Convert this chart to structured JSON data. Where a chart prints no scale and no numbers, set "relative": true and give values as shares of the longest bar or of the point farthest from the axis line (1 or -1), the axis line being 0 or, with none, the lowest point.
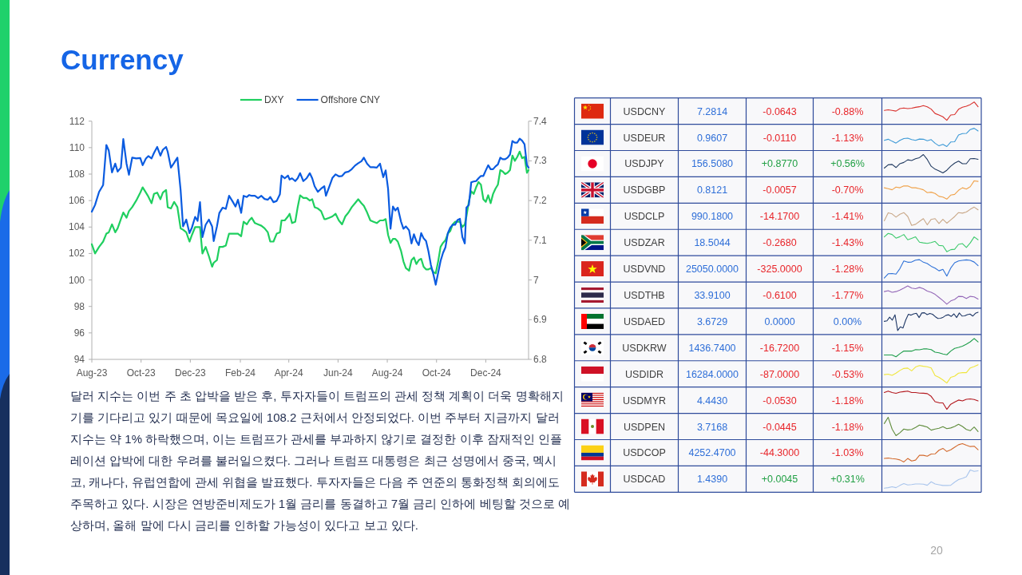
{
  "chart_data": [
    {
      "type": "line",
      "title": "Currency",
      "x": [
        "2023-08-01",
        "2023-08-05",
        "2023-08-10",
        "2023-08-15",
        "2023-08-19",
        "2023-08-22",
        "2023-08-26",
        "2023-08-30",
        "2023-09-02",
        "2023-09-06",
        "2023-09-09",
        "2023-09-13",
        "2023-09-16",
        "2023-09-20",
        "2023-09-25",
        "2023-09-30",
        "2023-10-03",
        "2023-10-07",
        "2023-10-10",
        "2023-10-14",
        "2023-10-17",
        "2023-10-21",
        "2023-10-25",
        "2023-10-28",
        "2023-11-01",
        "2023-11-03",
        "2023-11-07",
        "2023-11-11",
        "2023-11-15",
        "2023-11-19",
        "2023-11-22",
        "2023-11-26",
        "2023-11-30",
        "2023-12-03",
        "2023-12-07",
        "2023-12-10",
        "2023-12-13",
        "2023-12-16",
        "2023-12-20",
        "2023-12-24",
        "2023-12-28",
        "2023-12-30",
        "2024-01-03",
        "2024-01-06",
        "2024-01-10",
        "2024-01-14",
        "2024-01-18",
        "2024-01-22",
        "2024-01-26",
        "2024-01-29",
        "2024-02-02",
        "2024-02-05",
        "2024-02-09",
        "2024-02-12",
        "2024-02-15",
        "2024-02-19",
        "2024-02-23",
        "2024-02-27",
        "2024-03-02",
        "2024-03-06",
        "2024-03-09",
        "2024-03-13",
        "2024-03-17",
        "2024-03-21",
        "2024-03-23",
        "2024-03-27",
        "2024-03-31",
        "2024-04-02",
        "2024-04-05",
        "2024-04-09",
        "2024-04-12",
        "2024-04-15",
        "2024-04-19",
        "2024-04-23",
        "2024-04-27",
        "2024-04-30",
        "2024-05-03",
        "2024-05-07",
        "2024-05-11",
        "2024-05-15",
        "2024-05-17",
        "2024-05-21",
        "2024-05-25",
        "2024-05-29",
        "2024-06-02",
        "2024-06-06",
        "2024-06-10",
        "2024-06-14",
        "2024-06-18",
        "2024-06-22",
        "2024-06-26",
        "2024-06-30",
        "2024-07-03",
        "2024-07-07",
        "2024-07-11",
        "2024-07-15",
        "2024-07-19",
        "2024-07-23",
        "2024-07-27",
        "2024-07-30",
        "2024-08-02",
        "2024-08-05",
        "2024-08-08",
        "2024-08-11",
        "2024-08-14",
        "2024-08-18",
        "2024-08-21",
        "2024-08-24",
        "2024-08-28",
        "2024-08-31",
        "2024-09-03",
        "2024-09-06",
        "2024-09-09",
        "2024-09-12",
        "2024-09-15",
        "2024-09-18",
        "2024-09-21",
        "2024-09-24",
        "2024-09-27",
        "2024-09-30",
        "2024-10-03",
        "2024-10-06",
        "2024-10-09",
        "2024-10-12",
        "2024-10-15",
        "2024-10-18",
        "2024-10-21",
        "2024-10-24",
        "2024-10-27",
        "2024-10-30",
        "2024-11-02",
        "2024-11-05",
        "2024-11-07",
        "2024-11-10",
        "2024-11-13",
        "2024-11-16",
        "2024-11-19",
        "2024-11-22",
        "2024-11-25",
        "2024-11-28",
        "2024-12-01",
        "2024-12-04",
        "2024-12-07",
        "2024-12-10",
        "2024-12-13",
        "2024-12-16",
        "2024-12-19",
        "2024-12-22",
        "2024-12-25",
        "2024-12-28",
        "2024-12-31",
        "2025-01-03",
        "2025-01-06",
        "2025-01-09",
        "2025-01-12",
        "2025-01-15",
        "2025-01-18",
        "2025-01-21",
        "2025-01-23"
      ],
      "xlim": [
        "2023-08-01",
        "2025-01-23"
      ],
      "xticks": [
        {
          "value": "2023-08-01",
          "label": "Aug-23"
        },
        {
          "value": "2023-10-01",
          "label": "Oct-23"
        },
        {
          "value": "2023-12-01",
          "label": "Dec-23"
        },
        {
          "value": "2024-02-01",
          "label": "Feb-24"
        },
        {
          "value": "2024-04-01",
          "label": "Apr-24"
        },
        {
          "value": "2024-06-01",
          "label": "Jun-24"
        },
        {
          "value": "2024-08-01",
          "label": "Aug-24"
        },
        {
          "value": "2024-10-01",
          "label": "Oct-24"
        },
        {
          "value": "2024-12-01",
          "label": "Dec-24"
        }
      ],
      "ylim": [
        94,
        112
      ],
      "yticks": [
        94,
        96,
        98,
        100,
        102,
        104,
        106,
        108,
        110,
        112
      ],
      "y2lim": [
        6.8,
        7.4
      ],
      "y2ticks": [
        6.8,
        6.9,
        7,
        7.1,
        7.2,
        7.3,
        7.4
      ],
      "legend": "top",
      "series": [
        {
          "name": "DXY",
          "color": "#1fcf5f",
          "values": [
            102.7,
            102.0,
            102.5,
            102.9,
            103.5,
            103.6,
            104.2,
            103.6,
            103.9,
            104.6,
            105.1,
            104.7,
            105.2,
            105.5,
            106.0,
            106.6,
            107.0,
            106.6,
            106.3,
            105.8,
            106.5,
            106.6,
            106.1,
            106.6,
            106.8,
            105.5,
            105.4,
            105.9,
            105.5,
            103.9,
            103.8,
            103.6,
            102.9,
            103.4,
            104.0,
            104.0,
            104.0,
            102.0,
            102.5,
            101.8,
            101.0,
            101.3,
            101.5,
            102.5,
            102.5,
            102.6,
            103.5,
            103.5,
            103.5,
            103.5,
            103.3,
            104.4,
            104.2,
            104.5,
            104.7,
            104.3,
            104.2,
            104.1,
            103.9,
            103.6,
            102.9,
            102.9,
            103.5,
            103.6,
            104.5,
            104.5,
            104.8,
            105.0,
            104.3,
            104.4,
            105.5,
            106.4,
            106.2,
            106.2,
            106.0,
            106.1,
            105.5,
            105.4,
            105.2,
            104.6,
            104.6,
            104.7,
            104.8,
            105.0,
            104.5,
            104.2,
            104.8,
            105.1,
            105.5,
            105.8,
            106.1,
            105.8,
            105.6,
            105.1,
            104.5,
            104.4,
            104.3,
            104.5,
            104.5,
            104.6,
            103.4,
            102.8,
            103.1,
            103.1,
            102.9,
            102.2,
            101.4,
            100.9,
            100.7,
            101.5,
            101.7,
            101.2,
            101.5,
            101.6,
            101.0,
            100.8,
            100.8,
            100.9,
            100.6,
            100.5,
            101.4,
            102.5,
            102.8,
            103.0,
            103.5,
            103.7,
            104.2,
            104.4,
            104.4,
            104.4,
            104.0,
            104.2,
            104.8,
            105.9,
            106.7,
            106.5,
            107.0,
            107.4,
            107.2,
            106.1,
            105.9,
            106.4,
            105.8,
            106.5,
            106.9,
            107.2,
            108.3,
            108.2,
            108.0,
            108.1,
            108.3,
            109.4,
            109.0,
            109.3,
            109.7,
            109.2,
            109.3,
            108.1,
            108.3
          ]
        },
        {
          "name": "Offshore CNY",
          "color": "#0a5be0",
          "axis": "y2",
          "values": [
            7.172,
            7.189,
            7.222,
            7.239,
            7.34,
            7.326,
            7.271,
            7.293,
            7.273,
            7.283,
            7.355,
            7.293,
            7.265,
            7.308,
            7.306,
            7.307,
            7.289,
            7.306,
            7.312,
            7.306,
            7.32,
            7.335,
            7.313,
            7.328,
            7.335,
            7.323,
            7.283,
            7.295,
            7.308,
            7.226,
            7.135,
            7.152,
            7.118,
            7.132,
            7.159,
            7.149,
            7.196,
            7.108,
            7.139,
            7.152,
            7.135,
            7.098,
            7.135,
            7.169,
            7.182,
            7.179,
            7.212,
            7.199,
            7.185,
            7.202,
            7.169,
            7.212,
            7.209,
            7.214,
            7.212,
            7.212,
            7.206,
            7.212,
            7.204,
            7.202,
            7.209,
            7.196,
            7.199,
            7.216,
            7.263,
            7.256,
            7.263,
            7.253,
            7.256,
            7.249,
            7.256,
            7.269,
            7.249,
            7.256,
            7.269,
            7.256,
            7.236,
            7.222,
            7.23,
            7.236,
            7.212,
            7.234,
            7.257,
            7.266,
            7.261,
            7.262,
            7.271,
            7.273,
            7.279,
            7.288,
            7.294,
            7.299,
            7.308,
            7.293,
            7.284,
            7.284,
            7.283,
            7.293,
            7.259,
            7.276,
            7.229,
            7.129,
            7.185,
            7.175,
            7.182,
            7.147,
            7.129,
            7.135,
            7.125,
            7.092,
            7.115,
            7.098,
            7.088,
            7.118,
            7.105,
            7.098,
            7.072,
            7.038,
            7.015,
            6.988,
            7.018,
            7.048,
            7.068,
            7.082,
            7.118,
            7.132,
            7.139,
            7.139,
            7.151,
            7.154,
            7.108,
            7.092,
            7.182,
            7.189,
            7.246,
            7.248,
            7.249,
            7.256,
            7.262,
            7.262,
            7.276,
            7.289,
            7.279,
            7.279,
            7.286,
            7.291,
            7.308,
            7.304,
            7.304,
            7.308,
            7.316,
            7.35,
            7.346,
            7.346,
            7.356,
            7.351,
            7.342,
            7.289,
            7.283
          ]
        }
      ],
      "annotations": [
        "달러 지수는 이번 주 초 압박을 받은 후, 투자자들이 트럼프의 관세 정책 계획이 더욱 명확해지기를 기다리고 있기 때문에 목요일에 108.2 근처에서 안정되었다. 이번 주부터 지금까지 달러 지수는 약 1% 하락했으며, 이는 트럼프가 관세를 부과하지 않기로 결정한 이후 잠재적인 인플레이션 압박에 대한 우려를 불러일으켰다. 그러나 트럼프 대통령은 최근 성명에서 중국, 멕시코, 캐나다, 유럽연합에 관세 위협을 발표했다. 투자자들은 다음 주 연준의 통화정책 회의에도 주목하고 있다. 시장은 연방준비제도가 1월 금리를 동결하고 7월 금리 인하에 베팅할 것으로 예상하며, 올해 말에 다시 금리를 인하할 가능성이 있다고 보고 있다.",
        "20"
      ]
    },
    {
      "type": "other",
      "y_categories": [
        "USDCNY",
        "USDEUR",
        "USDJPY",
        "USDGBP",
        "USDCLP",
        "USDZAR",
        "USDVND",
        "USDTHB",
        "USDAED",
        "USDKRW",
        "USDIDR",
        "USDMYR",
        "USDPEN",
        "USDCOP",
        "USDCAD"
      ],
      "cell_labels": [
        [
          "7.2814",
          "-0.0643",
          "-0.88%"
        ],
        [
          "0.9607",
          "-0.0110",
          "-1.13%"
        ],
        [
          "156.5080",
          "+0.8770",
          "+0.56%"
        ],
        [
          "0.8121",
          "-0.0057",
          "-0.70%"
        ],
        [
          "990.1800",
          "-14.1700",
          "-1.41%"
        ],
        [
          "18.5044",
          "-0.2680",
          "-1.43%"
        ],
        [
          "25050.0000",
          "-325.0000",
          "-1.28%"
        ],
        [
          "33.9100",
          "-0.6100",
          "-1.77%"
        ],
        [
          "3.6729",
          "0.0000",
          "0.00%"
        ],
        [
          "1436.7400",
          "-16.7200",
          "-1.15%"
        ],
        [
          "16284.0000",
          "-87.0000",
          "-0.53%"
        ],
        [
          "4.4430",
          "-0.0530",
          "-1.18%"
        ],
        [
          "3.7168",
          "-0.0445",
          "-1.18%"
        ],
        [
          "4252.4700",
          "-44.3000",
          "-1.03%"
        ],
        [
          "1.4390",
          "+0.0045",
          "+0.31%"
        ]
      ],
      "colors": [
        [
          "#2f6fd8",
          "#e8262b",
          "#e8262b"
        ],
        [
          "#2f6fd8",
          "#e8262b",
          "#e8262b"
        ],
        [
          "#2f6fd8",
          "#22a045",
          "#22a045"
        ],
        [
          "#2f6fd8",
          "#e8262b",
          "#e8262b"
        ],
        [
          "#2f6fd8",
          "#e8262b",
          "#e8262b"
        ],
        [
          "#2f6fd8",
          "#e8262b",
          "#e8262b"
        ],
        [
          "#2f6fd8",
          "#e8262b",
          "#e8262b"
        ],
        [
          "#2f6fd8",
          "#e8262b",
          "#e8262b"
        ],
        [
          "#2f6fd8",
          "#2f6fd8",
          "#2f6fd8"
        ],
        [
          "#2f6fd8",
          "#e8262b",
          "#e8262b"
        ],
        [
          "#2f6fd8",
          "#e8262b",
          "#e8262b"
        ],
        [
          "#2f6fd8",
          "#e8262b",
          "#e8262b"
        ],
        [
          "#2f6fd8",
          "#e8262b",
          "#e8262b"
        ],
        [
          "#2f6fd8",
          "#e8262b",
          "#e8262b"
        ],
        [
          "#2f6fd8",
          "#22a045",
          "#22a045"
        ]
      ]
    },
    {
      "type": "line",
      "relative": true,
      "color": "#d9302c",
      "categories": [
        null,
        null,
        null,
        null,
        null,
        null,
        null,
        null,
        null,
        null,
        null,
        null,
        null,
        null,
        null,
        null,
        null,
        null,
        null,
        null,
        null,
        null,
        null,
        null,
        null
      ],
      "values": [
        0.54,
        0.57,
        0.54,
        0.5,
        0.64,
        0.67,
        0.64,
        0.66,
        0.71,
        0.74,
        0.8,
        0.74,
        0.61,
        0.37,
        0.29,
        0.19,
        0,
        0.29,
        0.31,
        0.6,
        0.71,
        0.77,
        0.86,
        1,
        0.74
      ]
    },
    {
      "type": "line",
      "relative": true,
      "color": "#3b99d6",
      "categories": [
        null,
        null,
        null,
        null,
        null,
        null,
        null,
        null,
        null,
        null,
        null,
        null,
        null,
        null,
        null,
        null,
        null,
        null,
        null,
        null,
        null,
        null,
        null,
        null,
        null
      ],
      "values": [
        0.34,
        0.4,
        0.29,
        0.19,
        0.34,
        0.44,
        0.46,
        0.38,
        0.34,
        0.41,
        0.4,
        0.32,
        0.38,
        0.18,
        0.04,
        0.12,
        0,
        0.25,
        0.26,
        0.63,
        0.71,
        0.72,
        0.93,
        1,
        0.85
      ]
    },
    {
      "type": "line",
      "relative": true,
      "color": "#213a60",
      "categories": [
        null,
        null,
        null,
        null,
        null,
        null,
        null,
        null,
        null,
        null,
        null,
        null,
        null,
        null,
        null,
        null,
        null,
        null,
        null,
        null,
        null,
        null,
        null,
        null,
        null
      ],
      "values": [
        0.26,
        0.44,
        0.46,
        0.29,
        0.5,
        0.57,
        0.71,
        0.67,
        0.77,
        0.83,
        1,
        0.73,
        0.36,
        0.2,
        0.11,
        0,
        0.14,
        0.36,
        0.53,
        0.64,
        0.5,
        0.5,
        0.77,
        0.78,
        0.74
      ]
    },
    {
      "type": "line",
      "relative": true,
      "color": "#f0a24a",
      "categories": [
        null,
        null,
        null,
        null,
        null,
        null,
        null,
        null,
        null,
        null,
        null,
        null,
        null,
        null,
        null,
        null,
        null,
        null,
        null,
        null,
        null,
        null,
        null,
        null,
        null
      ],
      "values": [
        0.62,
        0.57,
        0.51,
        0.66,
        0.62,
        0.72,
        0.72,
        0.62,
        0.62,
        0.57,
        0.51,
        0.35,
        0.38,
        0.31,
        0.15,
        0.11,
        0,
        0.22,
        0.26,
        0.48,
        0.62,
        0.55,
        0.68,
        1,
        0.97
      ]
    },
    {
      "type": "line",
      "relative": true,
      "color": "#c9a888",
      "categories": [
        null,
        null,
        null,
        null,
        null,
        null,
        null,
        null,
        null,
        null,
        null,
        null,
        null,
        null,
        null,
        null,
        null,
        null,
        null,
        null,
        null,
        null,
        null,
        null,
        null
      ],
      "values": [
        0.25,
        0.69,
        0.63,
        0.45,
        0.61,
        0.7,
        0.49,
        0,
        0.06,
        0.22,
        0.37,
        0.03,
        0.33,
        0.37,
        0.1,
        0.33,
        0.12,
        0.3,
        0.48,
        0.7,
        0.67,
        0.73,
        0.88,
        1,
        0.85
      ]
    },
    {
      "type": "line",
      "relative": true,
      "color": "#3dca6c",
      "categories": [
        null,
        null,
        null,
        null,
        null,
        null,
        null,
        null,
        null,
        null,
        null,
        null,
        null,
        null,
        null,
        null,
        null,
        null,
        null,
        null,
        null,
        null,
        null,
        null,
        null
      ],
      "values": [
        0.81,
        1,
        0.94,
        0.74,
        0.82,
        0.94,
        0.65,
        0.73,
        0.81,
        0.52,
        0.48,
        0.45,
        0.5,
        0.56,
        0.34,
        0.32,
        0,
        0.11,
        0.13,
        0.4,
        0.44,
        0.23,
        0.48,
        0.81,
        0.65
      ]
    },
    {
      "type": "line",
      "relative": true,
      "color": "#2f72d8",
      "categories": [
        null,
        null,
        null,
        null,
        null,
        null,
        null,
        null,
        null,
        null,
        null,
        null,
        null,
        null,
        null,
        null,
        null,
        null,
        null,
        null,
        null,
        null,
        null,
        null,
        null
      ],
      "values": [
        0,
        0.23,
        0.24,
        0.21,
        0.51,
        0.93,
        0.86,
        0.87,
        0.97,
        1,
        0.86,
        0.79,
        0.64,
        0.54,
        0.39,
        0.47,
        0.1,
        0.54,
        0.83,
        0.93,
        0.96,
        0.99,
        0.96,
        0.87,
        0.67
      ]
    },
    {
      "type": "line",
      "relative": true,
      "color": "#9468b8",
      "categories": [
        null,
        null,
        null,
        null,
        null,
        null,
        null,
        null,
        null,
        null,
        null,
        null,
        null,
        null,
        null,
        null,
        null,
        null,
        null,
        null,
        null,
        null,
        null,
        null,
        null
      ],
      "values": [
        0.69,
        0.74,
        0.65,
        0.69,
        0.77,
        0.88,
        1,
        0.88,
        0.85,
        0.92,
        0.85,
        0.72,
        0.65,
        0.54,
        0.37,
        0.2,
        0,
        0.18,
        0.26,
        0.43,
        0.42,
        0.31,
        0.43,
        0.4,
        0.28
      ]
    },
    {
      "type": "line",
      "relative": true,
      "color": "#1f3866",
      "categories": [
        null,
        null,
        null,
        null,
        null,
        null,
        null,
        null,
        null,
        null,
        null,
        null,
        null,
        null,
        null,
        null,
        null,
        null,
        null,
        null,
        null,
        null,
        null,
        null,
        null,
        null,
        null,
        null,
        null,
        null,
        null,
        null,
        null,
        null,
        null,
        null
      ],
      "values": [
        0.5,
        0.53,
        0.73,
        0.57,
        0.86,
        0,
        0.2,
        0.14,
        0.57,
        0.89,
        0.84,
        0.91,
        0.94,
        0.71,
        0.96,
        0.97,
        0.87,
        0.93,
        0.89,
        0.76,
        0.66,
        0.67,
        0.73,
        0.83,
        0.86,
        0.77,
        0.91,
        0.71,
        0.96,
        0.79,
        0.8,
        0.87,
        0.9,
        0.79,
        0.94,
        1
      ]
    },
    {
      "type": "line",
      "relative": true,
      "color": "#1f9e4b",
      "categories": [
        null,
        null,
        null,
        null,
        null,
        null,
        null,
        null,
        null,
        null,
        null,
        null,
        null,
        null,
        null,
        null,
        null,
        null,
        null,
        null,
        null,
        null,
        null,
        null,
        null
      ],
      "values": [
        0.1,
        0.1,
        0.1,
        0,
        0.17,
        0.32,
        0.31,
        0.31,
        0.39,
        0.38,
        0.43,
        0.43,
        0.39,
        0.25,
        0.22,
        0.15,
        0.11,
        0.31,
        0.46,
        0.51,
        0.58,
        0.69,
        0.82,
        1,
        0.81
      ]
    },
    {
      "type": "line",
      "relative": true,
      "color": "#f0e63c",
      "categories": [
        null,
        null,
        null,
        null,
        null,
        null,
        null,
        null,
        null,
        null,
        null,
        null,
        null,
        null,
        null,
        null,
        null,
        null,
        null,
        null,
        null,
        null,
        null,
        null,
        null
      ],
      "values": [
        0.46,
        0.49,
        0.42,
        0.54,
        0.69,
        0.8,
        0.82,
        0.67,
        0.88,
        0.96,
        0.92,
        0.89,
        0.83,
        0.41,
        0.31,
        0.17,
        0,
        0.31,
        0.38,
        0.54,
        0.57,
        0.57,
        0.83,
        0.9,
        1
      ]
    },
    {
      "type": "line",
      "relative": true,
      "color": "#b3181e",
      "categories": [
        null,
        null,
        null,
        null,
        null,
        null,
        null,
        null,
        null,
        null,
        null,
        null,
        null,
        null,
        null,
        null,
        null,
        null,
        null,
        null,
        null,
        null,
        null,
        null,
        null
      ],
      "values": [
        0.92,
        1,
        0.92,
        0.88,
        0.94,
        0.97,
        1,
        0.92,
        0.92,
        0.89,
        0.88,
        0.86,
        0.71,
        0.42,
        0.36,
        0.35,
        0,
        0.28,
        0.4,
        0.51,
        0.46,
        0.55,
        0.57,
        0.54,
        0.46
      ]
    },
    {
      "type": "line",
      "relative": true,
      "color": "#608d3d",
      "categories": [
        null,
        null,
        null,
        null,
        null,
        null,
        null,
        null,
        null,
        null,
        null,
        null,
        null,
        null,
        null,
        null,
        null,
        null,
        null,
        null,
        null,
        null,
        null,
        null,
        null
      ],
      "values": [
        0.66,
        1,
        0.36,
        0,
        0.16,
        0.36,
        0.31,
        0.34,
        0.45,
        0.58,
        0.53,
        0.47,
        0.3,
        0.36,
        0.4,
        0.49,
        0.38,
        0.42,
        0.5,
        0.62,
        0.5,
        0.34,
        0.27,
        0.47,
        0.22
      ]
    },
    {
      "type": "line",
      "relative": true,
      "color": "#d3692c",
      "categories": [
        null,
        null,
        null,
        null,
        null,
        null,
        null,
        null,
        null,
        null,
        null,
        null,
        null,
        null,
        null,
        null,
        null,
        null,
        null,
        null,
        null,
        null,
        null,
        null,
        null
      ],
      "values": [
        0.19,
        0.21,
        0.18,
        0.16,
        0.11,
        0,
        0.19,
        0.05,
        0.1,
        0.36,
        0.36,
        0.31,
        0.43,
        0.44,
        0.64,
        0.74,
        0.57,
        0.66,
        0.8,
        0.94,
        1,
        0.91,
        0.84,
        0.86,
        0.67
      ]
    },
    {
      "type": "line",
      "relative": true,
      "color": "#a9c5ec",
      "categories": [
        null,
        null,
        null,
        null,
        null,
        null,
        null,
        null,
        null,
        null,
        null,
        null,
        null,
        null,
        null,
        null,
        null,
        null,
        null,
        null,
        null,
        null,
        null,
        null,
        null
      ],
      "values": [
        0,
        0.03,
        0.08,
        0.03,
        0.15,
        0.25,
        0.18,
        0.2,
        0.23,
        0.23,
        0.22,
        0.16,
        0.35,
        0.23,
        0.19,
        0.15,
        0.15,
        0.16,
        0.33,
        0.47,
        0.54,
        0.62,
        1,
        0.92,
        0.95
      ]
    }
  ]
}
